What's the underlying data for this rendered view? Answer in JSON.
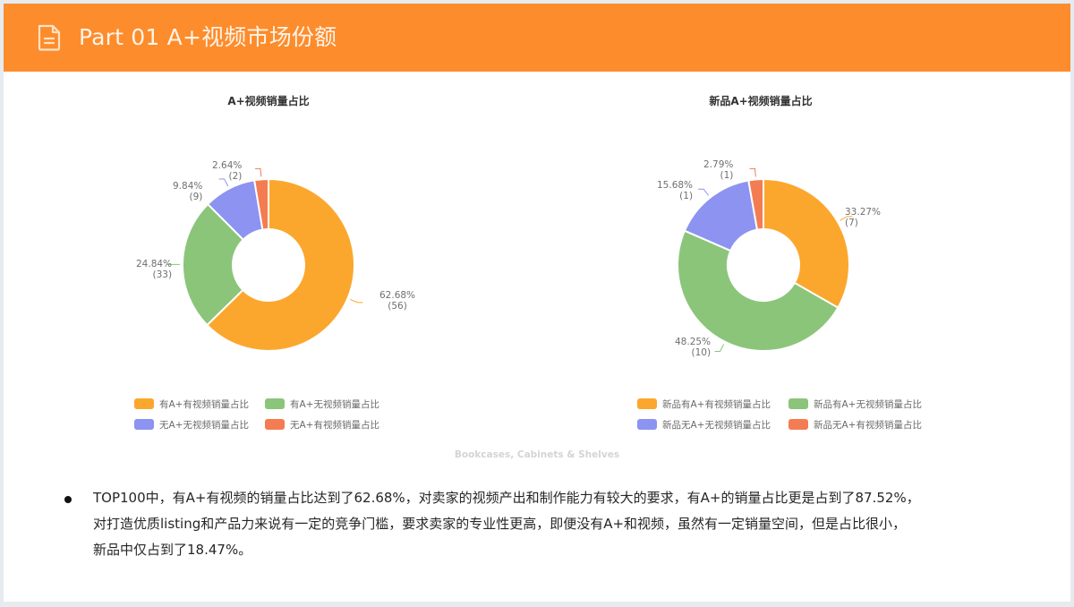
{
  "header": {
    "icon": "document-icon",
    "title": "Part 01  A+视频市场份额"
  },
  "charts": [
    {
      "title": "A+视频销量占比",
      "labels": [
        {
          "pct": "62.68%",
          "count": "(56)"
        },
        {
          "pct": "24.84%",
          "count": "(33)"
        },
        {
          "pct": "9.84%",
          "count": "(9)"
        },
        {
          "pct": "2.64%",
          "count": "(2)"
        }
      ],
      "legend": [
        "有A+有视频销量占比",
        "有A+无视频销量占比",
        "无A+无视频销量占比",
        "无A+有视频销量占比"
      ]
    },
    {
      "title": "新品A+视频销量占比",
      "labels": [
        {
          "pct": "33.27%",
          "count": "(7)"
        },
        {
          "pct": "48.25%",
          "count": "(10)"
        },
        {
          "pct": "15.68%",
          "count": "(1)"
        },
        {
          "pct": "2.79%",
          "count": "(1)"
        }
      ],
      "legend": [
        "新品有A+有视频销量占比",
        "新品有A+无视频销量占比",
        "新品无A+无视频销量占比",
        "新品无A+有视频销量占比"
      ]
    }
  ],
  "source": "Bookcases, Cabinets & Shelves",
  "summary": {
    "lines": [
      "TOP100中，有A+有视频的销量占比达到了62.68%，对卖家的视频产出和制作能力有较大的要求，有A+的销量占比更是占到了87.52%，",
      "对打造优质listing和产品力来说有一定的竞争门槛，要求卖家的专业性更高，即便没有A+和视频，虽然有一定销量空间，但是占比很小，",
      "新品中仅占到了18.47%。"
    ]
  },
  "colors": {
    "header": "#fd8c2c",
    "orange": "#fba72e",
    "green": "#8bc57a",
    "blue": "#8c93f0",
    "red": "#f47c52"
  },
  "chart_data": [
    {
      "type": "pie",
      "variant": "donut",
      "title": "A+视频销量占比",
      "categories": [
        "有A+有视频销量占比",
        "有A+无视频销量占比",
        "无A+无视频销量占比",
        "无A+有视频销量占比"
      ],
      "values": [
        62.68,
        24.84,
        9.84,
        2.64
      ],
      "counts": [
        56,
        33,
        9,
        2
      ],
      "colors": [
        "#fba72e",
        "#8bc57a",
        "#8c93f0",
        "#f47c52"
      ],
      "legend_position": "bottom"
    },
    {
      "type": "pie",
      "variant": "donut",
      "title": "新品A+视频销量占比",
      "categories": [
        "新品有A+有视频销量占比",
        "新品有A+无视频销量占比",
        "新品无A+无视频销量占比",
        "新品无A+有视频销量占比"
      ],
      "values": [
        33.27,
        48.25,
        15.68,
        2.79
      ],
      "counts": [
        7,
        10,
        1,
        1
      ],
      "colors": [
        "#fba72e",
        "#8bc57a",
        "#8c93f0",
        "#f47c52"
      ],
      "legend_position": "bottom"
    }
  ]
}
